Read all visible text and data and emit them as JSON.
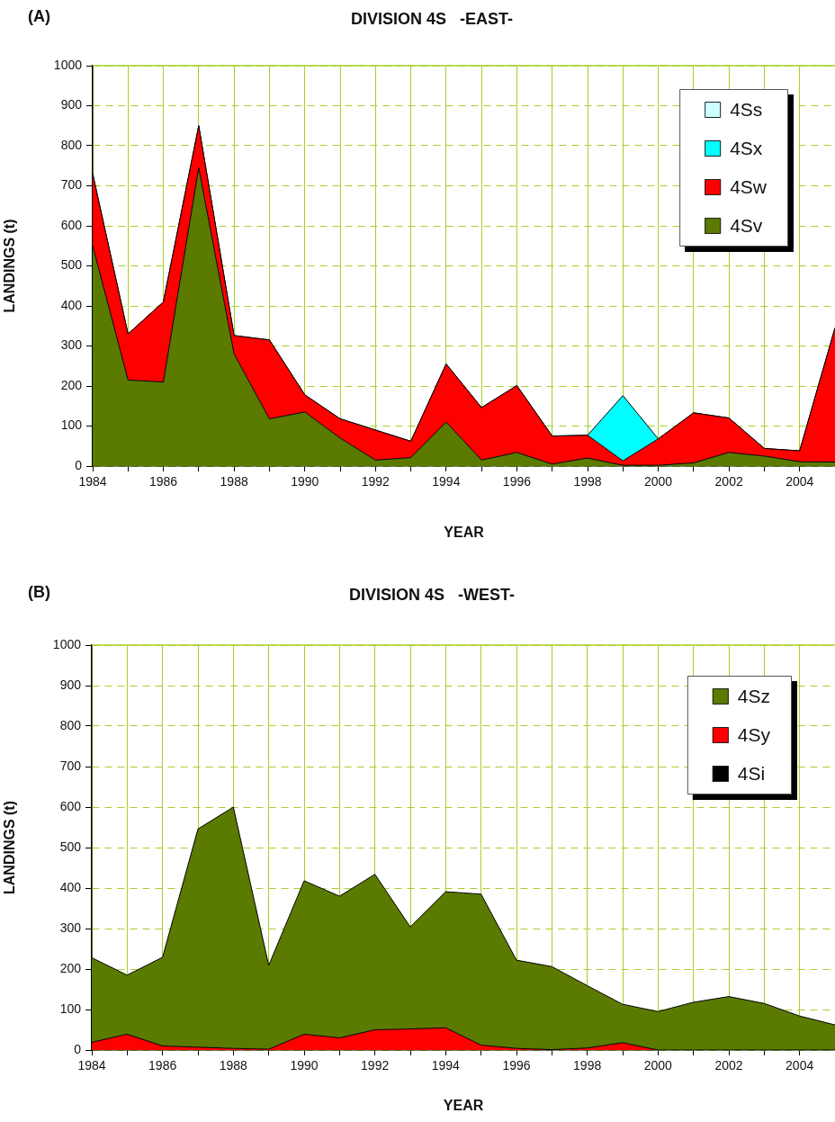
{
  "chart_data": [
    {
      "type": "area",
      "title": "DIVISION 4S   -EAST-",
      "annotations": [
        "(A)"
      ],
      "xlabel": "YEAR",
      "ylabel": "LANDINGS (t)",
      "stacked": true,
      "legend": "top right",
      "grid": true,
      "x": [
        1984,
        1985,
        1986,
        1987,
        1988,
        1989,
        1990,
        1991,
        1992,
        1993,
        1994,
        1995,
        1996,
        1997,
        1998,
        1999,
        2000,
        2001,
        2002,
        2003,
        2004,
        2005
      ],
      "series": [
        {
          "name": "4Sv",
          "color": "#5b7a00",
          "values": [
            550,
            215,
            210,
            745,
            280,
            118,
            135,
            70,
            15,
            21,
            110,
            15,
            34,
            5,
            20,
            2,
            2,
            8,
            34,
            25,
            11,
            10
          ]
        },
        {
          "name": "4Sw",
          "color": "#ff0000",
          "values": [
            180,
            115,
            200,
            105,
            46,
            197,
            43,
            48,
            75,
            41,
            145,
            131,
            167,
            70,
            57,
            11,
            66,
            125,
            86,
            19,
            27,
            335
          ]
        },
        {
          "name": "4Sx",
          "color": "#00ffff",
          "values": [
            0,
            0,
            0,
            0,
            0,
            0,
            0,
            0,
            0,
            0,
            0,
            0,
            0,
            0,
            0,
            163,
            0,
            0,
            0,
            0,
            0,
            0
          ]
        },
        {
          "name": "4Ss",
          "color": "#ccffff",
          "values": [
            null,
            null,
            null,
            null,
            null,
            null,
            null,
            null,
            null,
            null,
            null,
            null,
            null,
            null,
            null,
            null,
            null,
            null,
            null,
            null,
            null,
            null
          ]
        }
      ],
      "xlim": [
        1984,
        2005
      ],
      "xticks": [
        1984,
        {
          "value": 1985,
          "label": null
        },
        1986,
        {
          "value": 1987,
          "label": null
        },
        1988,
        {
          "value": 1989,
          "label": null
        },
        1990,
        {
          "value": 1991,
          "label": null
        },
        1992,
        {
          "value": 1993,
          "label": null
        },
        1994,
        {
          "value": 1995,
          "label": null
        },
        1996,
        {
          "value": 1997,
          "label": null
        },
        1998,
        {
          "value": 1999,
          "label": null
        },
        2000,
        {
          "value": 2001,
          "label": null
        },
        2002,
        {
          "value": 2003,
          "label": null
        },
        2004
      ],
      "ylim": [
        0,
        1000
      ],
      "yticks": [
        0,
        100,
        200,
        300,
        400,
        500,
        600,
        700,
        800,
        900,
        1000
      ]
    },
    {
      "type": "area",
      "title": "DIVISION 4S   -WEST-",
      "annotations": [
        "(B)"
      ],
      "xlabel": "YEAR",
      "ylabel": "LANDINGS (t)",
      "stacked": true,
      "legend": "top right",
      "grid": true,
      "x": [
        1984,
        1985,
        1986,
        1987,
        1988,
        1989,
        1990,
        1991,
        1992,
        1993,
        1994,
        1995,
        1996,
        1997,
        1998,
        1999,
        2000,
        2001,
        2002,
        2003,
        2004,
        2005
      ],
      "series": [
        {
          "name": "4Si",
          "color": "#000000",
          "values": [
            null,
            null,
            null,
            null,
            null,
            null,
            null,
            null,
            null,
            null,
            null,
            null,
            null,
            null,
            null,
            null,
            null,
            null,
            null,
            null,
            null,
            null
          ]
        },
        {
          "name": "4Sy",
          "color": "#ff0000",
          "values": [
            19,
            39,
            10,
            7,
            4,
            2,
            39,
            30,
            50,
            52,
            55,
            12,
            4,
            1,
            5,
            18,
            0,
            0,
            0,
            0,
            0,
            0
          ]
        },
        {
          "name": "4Sz",
          "color": "#5b7a00",
          "values": [
            209,
            146,
            219,
            539,
            596,
            207,
            379,
            350,
            384,
            252,
            336,
            373,
            218,
            205,
            154,
            95,
            95,
            118,
            132,
            115,
            84,
            62
          ]
        }
      ],
      "xlim": [
        1984,
        2005
      ],
      "xticks": [
        1984,
        {
          "value": 1985,
          "label": null
        },
        1986,
        {
          "value": 1987,
          "label": null
        },
        1988,
        {
          "value": 1989,
          "label": null
        },
        1990,
        {
          "value": 1991,
          "label": null
        },
        1992,
        {
          "value": 1993,
          "label": null
        },
        1994,
        {
          "value": 1995,
          "label": null
        },
        1996,
        {
          "value": 1997,
          "label": null
        },
        1998,
        {
          "value": 1999,
          "label": null
        },
        2000,
        {
          "value": 2001,
          "label": null
        },
        2002,
        {
          "value": 2003,
          "label": null
        },
        2004
      ],
      "ylim": [
        0,
        1000
      ],
      "yticks": [
        0,
        100,
        200,
        300,
        400,
        500,
        600,
        700,
        800,
        900,
        1000
      ]
    }
  ]
}
